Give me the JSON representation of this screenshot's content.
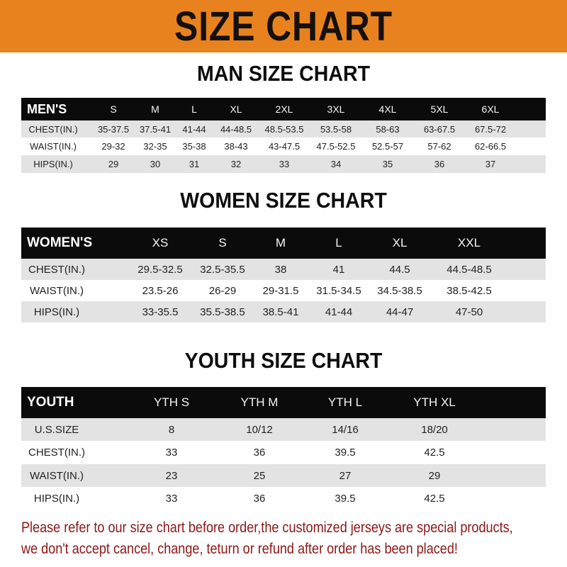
{
  "banner": {
    "title": "SIZE CHART",
    "color": "#e8821e"
  },
  "men": {
    "title": "MAN SIZE CHART",
    "headers": [
      "MEN'S",
      "S",
      "M",
      "L",
      "XL",
      "2XL",
      "3XL",
      "4XL",
      "5XL",
      "6XL"
    ],
    "rows": [
      [
        "CHEST(IN.)",
        "35-37.5",
        "37.5-41",
        "41-44",
        "44-48.5",
        "48.5-53.5",
        "53.5-58",
        "58-63",
        "63-67.5",
        "67.5-72"
      ],
      [
        "WAIST(IN.)",
        "29-32",
        "32-35",
        "35-38",
        "38-43",
        "43-47.5",
        "47.5-52.5",
        "52.5-57",
        "57-62",
        "62-66.5"
      ],
      [
        "HIPS(IN.)",
        "29",
        "30",
        "31",
        "32",
        "33",
        "34",
        "35",
        "36",
        "37"
      ]
    ]
  },
  "women": {
    "title": "WOMEN SIZE CHART",
    "headers": [
      "WOMEN'S",
      "XS",
      "S",
      "M",
      "L",
      "XL",
      "XXL"
    ],
    "rows": [
      [
        "CHEST(IN.)",
        "29.5-32.5",
        "32.5-35.5",
        "38",
        "41",
        "44.5",
        "44.5-48.5"
      ],
      [
        "WAIST(IN.)",
        "23.5-26",
        "26-29",
        "29-31.5",
        "31.5-34.5",
        "34.5-38.5",
        "38.5-42.5"
      ],
      [
        "HIPS(IN.)",
        "33-35.5",
        "35.5-38.5",
        "38.5-41",
        "41-44",
        "44-47",
        "47-50"
      ]
    ]
  },
  "youth": {
    "title": "YOUTH SIZE CHART",
    "headers": [
      "YOUTH",
      "YTH S",
      "YTH M",
      "YTH L",
      "YTH XL"
    ],
    "rows": [
      [
        "U.S.SIZE",
        "8",
        "10/12",
        "14/16",
        "18/20"
      ],
      [
        "CHEST(IN.)",
        "33",
        "36",
        "39.5",
        "42.5"
      ],
      [
        "WAIST(IN.)",
        "23",
        "25",
        "27",
        "29"
      ],
      [
        "HIPS(IN.)",
        "33",
        "36",
        "39.5",
        "42.5"
      ]
    ]
  },
  "note": {
    "line1": "Please refer to our size chart before order,the customized jerseys are special products,",
    "line2": "we don't accept cancel, change, teturn or refund after order has been placed!",
    "color": "#8e1616"
  }
}
